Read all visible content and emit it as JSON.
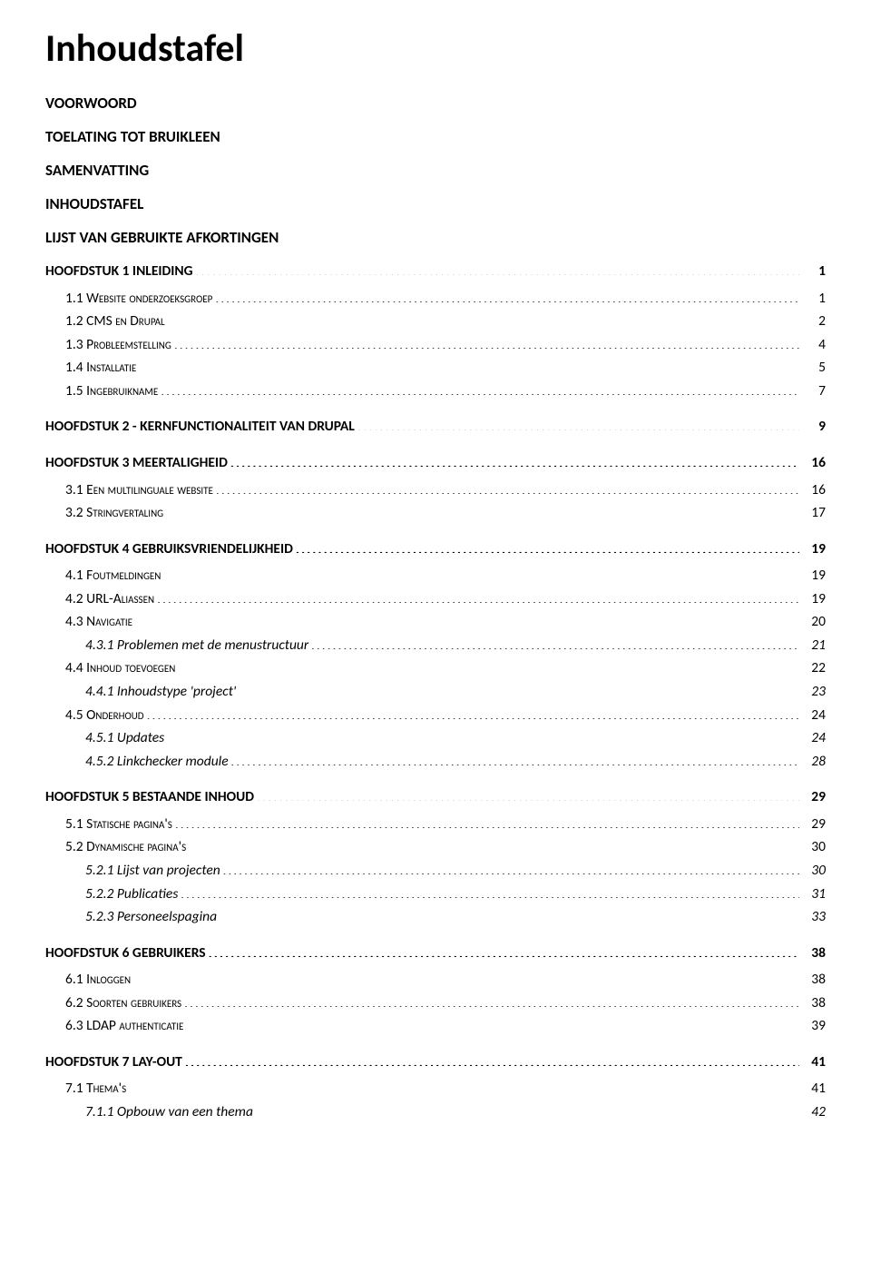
{
  "title": "Inhoudstafel",
  "plain_headings": [
    "VOORWOORD",
    "TOELATING TOT BRUIKLEEN",
    "SAMENVATTING",
    "INHOUDSTAFEL",
    "LIJST VAN GEBRUIKTE AFKORTINGEN"
  ],
  "toc": [
    {
      "level": 1,
      "smallcaps": false,
      "italic": false,
      "label": "HOOFDSTUK 1 INLEIDING",
      "page": "1"
    },
    {
      "level": 2,
      "smallcaps": true,
      "italic": false,
      "label": "1.1 Website onderzoeksgroep",
      "page": "1"
    },
    {
      "level": 2,
      "smallcaps": true,
      "italic": false,
      "label": "1.2 CMS en Drupal",
      "page": "2"
    },
    {
      "level": 2,
      "smallcaps": true,
      "italic": false,
      "label": "1.3 Probleemstelling",
      "page": "4"
    },
    {
      "level": 2,
      "smallcaps": true,
      "italic": false,
      "label": "1.4 Installatie",
      "page": "5"
    },
    {
      "level": 2,
      "smallcaps": true,
      "italic": false,
      "label": "1.5 Ingebruikname",
      "page": "7"
    },
    {
      "level": 1,
      "smallcaps": false,
      "italic": false,
      "label": "HOOFDSTUK 2 - KERNFUNCTIONALITEIT VAN DRUPAL",
      "page": "9"
    },
    {
      "level": 1,
      "smallcaps": false,
      "italic": false,
      "label": "HOOFDSTUK 3 MEERTALIGHEID",
      "page": "16"
    },
    {
      "level": 2,
      "smallcaps": true,
      "italic": false,
      "label": "3.1 Een multilinguale website",
      "page": "16"
    },
    {
      "level": 2,
      "smallcaps": true,
      "italic": false,
      "label": "3.2 Stringvertaling",
      "page": "17"
    },
    {
      "level": 1,
      "smallcaps": false,
      "italic": false,
      "label": "HOOFDSTUK 4 GEBRUIKSVRIENDELIJKHEID",
      "page": "19"
    },
    {
      "level": 2,
      "smallcaps": true,
      "italic": false,
      "label": "4.1 Foutmeldingen",
      "page": "19"
    },
    {
      "level": 2,
      "smallcaps": true,
      "italic": false,
      "label": "4.2 URL-Aliassen",
      "page": "19"
    },
    {
      "level": 2,
      "smallcaps": true,
      "italic": false,
      "label": "4.3 Navigatie",
      "page": "20"
    },
    {
      "level": 3,
      "smallcaps": false,
      "italic": true,
      "label": "4.3.1 Problemen met de menustructuur",
      "page": "21"
    },
    {
      "level": 2,
      "smallcaps": true,
      "italic": false,
      "label": "4.4 Inhoud toevoegen",
      "page": "22"
    },
    {
      "level": 3,
      "smallcaps": false,
      "italic": true,
      "label": "4.4.1 Inhoudstype 'project'",
      "page": "23"
    },
    {
      "level": 2,
      "smallcaps": true,
      "italic": false,
      "label": "4.5 Onderhoud",
      "page": "24"
    },
    {
      "level": 3,
      "smallcaps": false,
      "italic": true,
      "label": "4.5.1 Updates",
      "page": "24"
    },
    {
      "level": 3,
      "smallcaps": false,
      "italic": true,
      "label": "4.5.2 Linkchecker module",
      "page": "28"
    },
    {
      "level": 1,
      "smallcaps": false,
      "italic": false,
      "label": "HOOFDSTUK 5 BESTAANDE INHOUD",
      "page": "29"
    },
    {
      "level": 2,
      "smallcaps": true,
      "italic": false,
      "label": "5.1 Statische pagina's",
      "page": "29"
    },
    {
      "level": 2,
      "smallcaps": true,
      "italic": false,
      "label": "5.2 Dynamische pagina's",
      "page": "30"
    },
    {
      "level": 3,
      "smallcaps": false,
      "italic": true,
      "label": "5.2.1 Lijst van projecten",
      "page": "30"
    },
    {
      "level": 3,
      "smallcaps": false,
      "italic": true,
      "label": "5.2.2 Publicaties",
      "page": "31"
    },
    {
      "level": 3,
      "smallcaps": false,
      "italic": true,
      "label": "5.2.3 Personeelspagina",
      "page": "33"
    },
    {
      "level": 1,
      "smallcaps": false,
      "italic": false,
      "label": "HOOFDSTUK 6 GEBRUIKERS",
      "page": "38"
    },
    {
      "level": 2,
      "smallcaps": true,
      "italic": false,
      "label": "6.1 Inloggen",
      "page": "38"
    },
    {
      "level": 2,
      "smallcaps": true,
      "italic": false,
      "label": "6.2 Soorten gebruikers",
      "page": "38"
    },
    {
      "level": 2,
      "smallcaps": true,
      "italic": false,
      "label": "6.3 LDAP authenticatie",
      "page": "39"
    },
    {
      "level": 1,
      "smallcaps": false,
      "italic": false,
      "label": "HOOFDSTUK 7 LAY-OUT",
      "page": "41"
    },
    {
      "level": 2,
      "smallcaps": true,
      "italic": false,
      "label": "7.1 Thema's",
      "page": "41"
    },
    {
      "level": 3,
      "smallcaps": false,
      "italic": true,
      "label": "7.1.1 Opbouw van een thema",
      "page": "42"
    }
  ],
  "colors": {
    "background": "#ffffff",
    "text": "#000000"
  },
  "fonts": {
    "title_size_pt": 32,
    "heading_size_pt": 13,
    "body_size_pt": 11.5
  }
}
